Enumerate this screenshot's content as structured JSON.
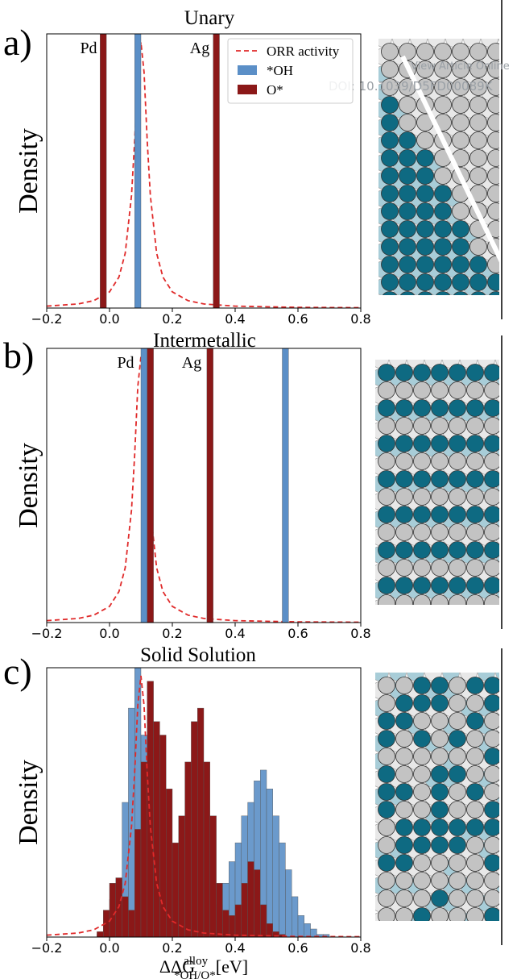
{
  "watermark": [
    "View Article Online",
    "DOI: 10.1039/D5FD00089K"
  ],
  "chart_data": [
    {
      "type": "histogram",
      "panel_label": "a)",
      "title": "Unary",
      "ylabel": "Density",
      "xlim": [
        -0.2,
        0.8
      ],
      "xticks": [
        {
          "value": -0.2,
          "label": "−0.2"
        },
        {
          "value": 0,
          "label": "0.0"
        },
        0.2,
        0.4,
        0.6,
        0.8
      ],
      "ylim": [
        0,
        1
      ],
      "annotations": [
        "Pd",
        "Ag"
      ],
      "legend": "upper right",
      "series": [
        {
          "name": "ORR activity",
          "type": "line",
          "style": "dashed",
          "color": "#e02a2a",
          "x": [
            -0.2,
            -0.1,
            -0.05,
            0,
            0.03,
            0.05,
            0.07,
            0.08,
            0.09,
            0.1,
            0.11,
            0.12,
            0.13,
            0.15,
            0.17,
            0.2,
            0.25,
            0.3,
            0.4,
            0.6,
            0.8
          ],
          "values": [
            0.007,
            0.015,
            0.027,
            0.059,
            0.113,
            0.2,
            0.41,
            0.61,
            0.86,
            0.97,
            0.86,
            0.61,
            0.41,
            0.2,
            0.113,
            0.059,
            0.027,
            0.015,
            0.007,
            0.0025,
            0.0013
          ]
        },
        {
          "name": "*OH",
          "type": "histogram",
          "color": "#5b8fc7",
          "bins": [
            0.08,
            0.1
          ],
          "values": [
            1
          ]
        },
        {
          "name": "O*",
          "type": "histogram",
          "color": "#8b1818",
          "bins": [
            -0.03,
            -0.01,
            0.33,
            0.35
          ],
          "values": [
            1,
            0,
            1
          ]
        }
      ]
    },
    {
      "type": "histogram",
      "panel_label": "b)",
      "title": "Intermetallic",
      "ylabel": "Density",
      "xlim": [
        -0.2,
        0.8
      ],
      "xticks": [
        {
          "value": -0.2,
          "label": "−0.2"
        },
        {
          "value": 0,
          "label": "0.0"
        },
        0.2,
        0.4,
        0.6,
        0.8
      ],
      "ylim": [
        0,
        1
      ],
      "annotations": [
        "Pd",
        "Ag"
      ],
      "series": [
        {
          "name": "ORR activity",
          "type": "line",
          "style": "dashed",
          "color": "#e02a2a",
          "x": [
            -0.2,
            -0.1,
            -0.05,
            0,
            0.03,
            0.05,
            0.07,
            0.08,
            0.09,
            0.1,
            0.11,
            0.12,
            0.13,
            0.15,
            0.17,
            0.2,
            0.25,
            0.3,
            0.4,
            0.6,
            0.8
          ],
          "values": [
            0.007,
            0.015,
            0.027,
            0.059,
            0.113,
            0.2,
            0.41,
            0.61,
            0.86,
            0.97,
            0.86,
            0.61,
            0.41,
            0.2,
            0.113,
            0.059,
            0.027,
            0.015,
            0.007,
            0.0025,
            0.0013
          ]
        },
        {
          "name": "*OH",
          "type": "histogram",
          "color": "#5b8fc7",
          "bins": [
            0.1,
            0.12,
            0.55,
            0.57
          ],
          "values": [
            1,
            0,
            1
          ]
        },
        {
          "name": "O*",
          "type": "histogram",
          "color": "#8b1818",
          "bins": [
            0.12,
            0.14,
            0.31,
            0.33
          ],
          "values": [
            1,
            0,
            1
          ]
        }
      ]
    },
    {
      "type": "histogram",
      "panel_label": "c)",
      "title": "Solid Solution",
      "ylabel": "Density",
      "xlabel": {
        "main": "ΔΔG",
        "sup": "alloy",
        "sub": "*OH/O*",
        "unit": "[eV]"
      },
      "xlim": [
        -0.2,
        0.8
      ],
      "xticks": [
        {
          "value": -0.2,
          "label": "−0.2"
        },
        {
          "value": 0,
          "label": "0.0"
        },
        0.2,
        0.4,
        0.6,
        0.8
      ],
      "ylim": [
        0,
        1
      ],
      "series": [
        {
          "name": "*OH",
          "type": "histogram",
          "color": "#5b8fc7",
          "bins": [
            -0.04,
            -0.02,
            0,
            0.02,
            0.04,
            0.06,
            0.08,
            0.1,
            0.12,
            0.14,
            0.16,
            0.18,
            0.2,
            0.22,
            0.24,
            0.26,
            0.28,
            0.3,
            0.32,
            0.34,
            0.36,
            0.38,
            0.4,
            0.42,
            0.44,
            0.46,
            0.48,
            0.5,
            0.52,
            0.54,
            0.56,
            0.58,
            0.6,
            0.62,
            0.64,
            0.66,
            0.68,
            0.7
          ],
          "values": [
            0.01,
            0.05,
            0.14,
            0.2,
            0.5,
            0.85,
            1.0,
            0.75,
            0.45,
            0.3,
            0.2,
            0.1,
            0.05,
            0.02,
            0.01,
            0.01,
            0.02,
            0.03,
            0.06,
            0.12,
            0.2,
            0.28,
            0.35,
            0.45,
            0.5,
            0.58,
            0.62,
            0.55,
            0.45,
            0.35,
            0.25,
            0.15,
            0.08,
            0.05,
            0.03,
            0.01,
            0.01
          ]
        },
        {
          "name": "O*",
          "type": "histogram",
          "color": "#8b1818",
          "bins": [
            -0.04,
            -0.02,
            0,
            0.02,
            0.04,
            0.06,
            0.08,
            0.1,
            0.12,
            0.14,
            0.16,
            0.18,
            0.2,
            0.22,
            0.24,
            0.26,
            0.28,
            0.3,
            0.32,
            0.34,
            0.36,
            0.38,
            0.4,
            0.42,
            0.44,
            0.46,
            0.48,
            0.5,
            0.52,
            0.54,
            0.56,
            0.58,
            0.6,
            0.62,
            0.64,
            0.66,
            0.68,
            0.7
          ],
          "values": [
            0.02,
            0.1,
            0.2,
            0.22,
            0.15,
            0.1,
            0.4,
            0.65,
            0.95,
            0.8,
            0.75,
            0.55,
            0.35,
            0.45,
            0.65,
            0.8,
            0.85,
            0.65,
            0.45,
            0.2,
            0.1,
            0.08,
            0.12,
            0.2,
            0.28,
            0.25,
            0.12,
            0.05,
            0.02,
            0.01,
            0,
            0,
            0,
            0,
            0,
            0,
            0
          ]
        },
        {
          "name": "ORR activity",
          "type": "line",
          "style": "dashed",
          "color": "#e02a2a",
          "x": [
            -0.2,
            -0.1,
            -0.05,
            0,
            0.03,
            0.05,
            0.07,
            0.08,
            0.09,
            0.1,
            0.11,
            0.12,
            0.13,
            0.15,
            0.17,
            0.2,
            0.25,
            0.3,
            0.4,
            0.6,
            0.8
          ],
          "values": [
            0.007,
            0.015,
            0.027,
            0.059,
            0.113,
            0.2,
            0.41,
            0.61,
            0.86,
            0.97,
            0.86,
            0.61,
            0.41,
            0.2,
            0.113,
            0.059,
            0.027,
            0.015,
            0.007,
            0.0025,
            0.0013
          ]
        }
      ]
    }
  ]
}
